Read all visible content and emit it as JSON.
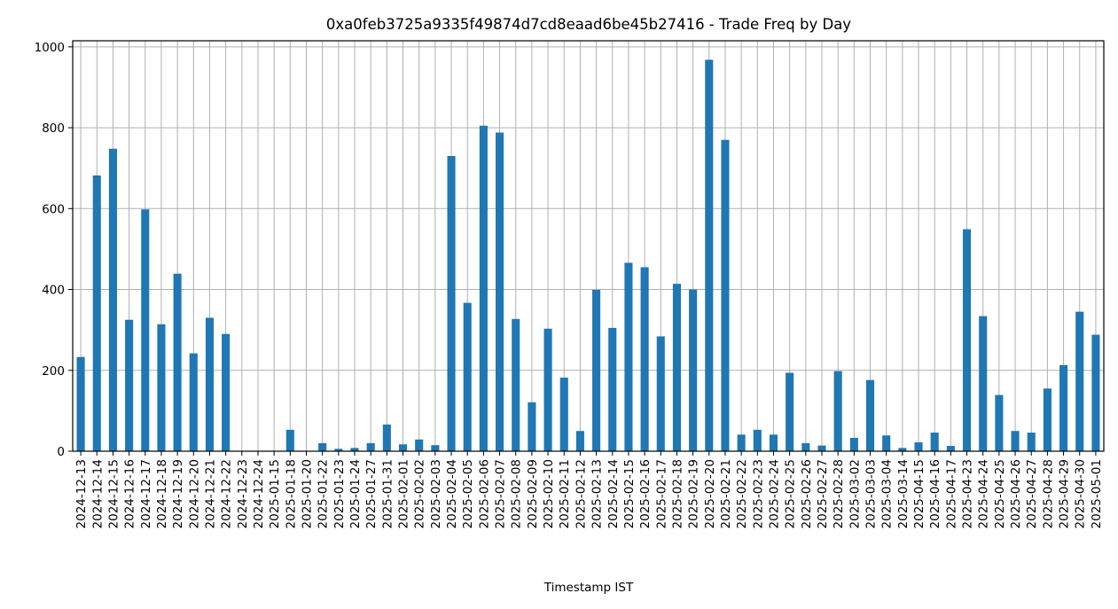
{
  "chart_data": {
    "type": "bar",
    "title": "0xa0feb3725a9335f49874d7cd8eaad6be45b27416 - Trade Freq by Day",
    "xlabel": "Timestamp IST",
    "ylabel": "",
    "ylim": [
      0,
      1015
    ],
    "yticks": [
      0,
      200,
      400,
      600,
      800,
      1000
    ],
    "grid": true,
    "bar_color": "#1f77b4",
    "categories": [
      "2024-12-13",
      "2024-12-14",
      "2024-12-15",
      "2024-12-16",
      "2024-12-17",
      "2024-12-18",
      "2024-12-19",
      "2024-12-20",
      "2024-12-21",
      "2024-12-22",
      "2024-12-23",
      "2024-12-24",
      "2025-01-15",
      "2025-01-18",
      "2025-01-20",
      "2025-01-22",
      "2025-01-23",
      "2025-01-24",
      "2025-01-27",
      "2025-01-31",
      "2025-02-01",
      "2025-02-02",
      "2025-02-03",
      "2025-02-04",
      "2025-02-05",
      "2025-02-06",
      "2025-02-07",
      "2025-02-08",
      "2025-02-09",
      "2025-02-10",
      "2025-02-11",
      "2025-02-12",
      "2025-02-13",
      "2025-02-14",
      "2025-02-15",
      "2025-02-16",
      "2025-02-17",
      "2025-02-18",
      "2025-02-19",
      "2025-02-20",
      "2025-02-21",
      "2025-02-22",
      "2025-02-23",
      "2025-02-24",
      "2025-02-25",
      "2025-02-26",
      "2025-02-27",
      "2025-02-28",
      "2025-03-02",
      "2025-03-03",
      "2025-03-04",
      "2025-03-14",
      "2025-04-15",
      "2025-04-16",
      "2025-04-17",
      "2025-04-23",
      "2025-04-24",
      "2025-04-25",
      "2025-04-26",
      "2025-04-27",
      "2025-04-28",
      "2025-04-29",
      "2025-04-30",
      "2025-05-01"
    ],
    "values": [
      233,
      682,
      748,
      325,
      598,
      314,
      439,
      242,
      330,
      290,
      0,
      0,
      0,
      53,
      0,
      20,
      6,
      8,
      20,
      66,
      17,
      29,
      15,
      730,
      367,
      805,
      788,
      327,
      121,
      303,
      182,
      50,
      399,
      305,
      466,
      455,
      284,
      414,
      400,
      968,
      770,
      41,
      53,
      41,
      194,
      20,
      14,
      198,
      33,
      176,
      39,
      8,
      22,
      46,
      13,
      549,
      334,
      139,
      50,
      46,
      155,
      213,
      345,
      288
    ]
  }
}
